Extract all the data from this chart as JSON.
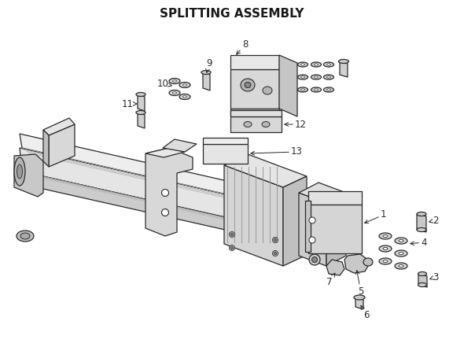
{
  "title": "SPLITTING ASSEMBLY",
  "title_fontsize": 11,
  "title_fontweight": "bold",
  "background_color": "#ffffff",
  "line_color": "#2a2a2a",
  "figsize": [
    5.9,
    4.41
  ],
  "dpi": 100,
  "xlim": [
    0,
    590
  ],
  "ylim": [
    0,
    441
  ],
  "gray_light": "#e8e8e8",
  "gray_mid": "#cccccc",
  "gray_dark": "#aaaaaa",
  "gray_darker": "#888888",
  "white": "#ffffff"
}
